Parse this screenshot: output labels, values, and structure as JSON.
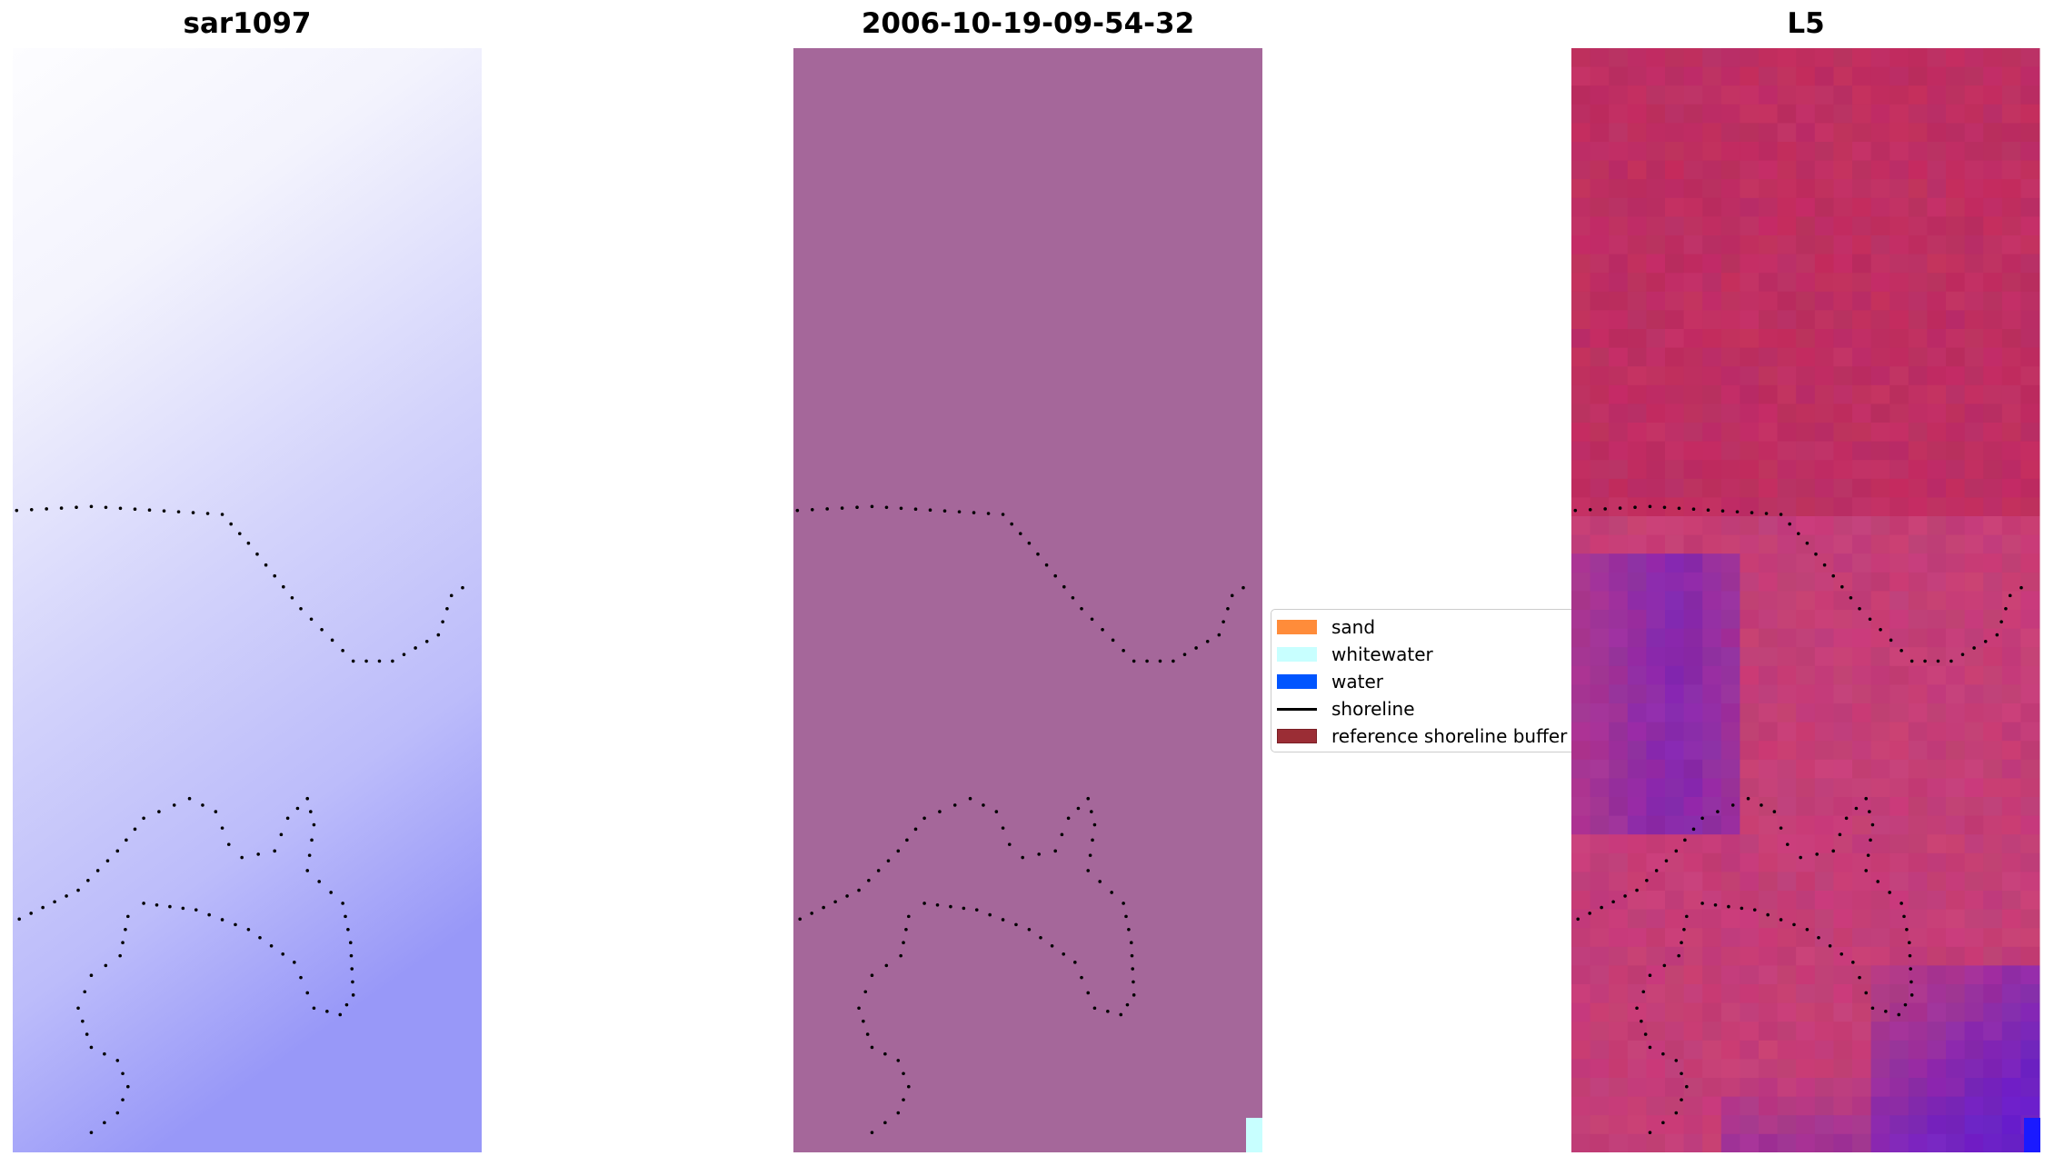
{
  "chart_data": {
    "type": "heatmap",
    "panels": [
      {
        "title": "sar1097",
        "description_colormap": "white-to-blue"
      },
      {
        "title": "2006-10-19-09-54-32",
        "fill_color": "#a5679a"
      },
      {
        "title": "L5",
        "description_colormap": "crimson-to-purple"
      }
    ],
    "legend": {
      "placement": "center",
      "entries": [
        {
          "label": "sand",
          "color": "#ff8c3a",
          "kind": "patch"
        },
        {
          "label": "whitewater",
          "color": "#c8ffff",
          "kind": "patch"
        },
        {
          "label": "water",
          "color": "#0055ff",
          "kind": "patch"
        },
        {
          "label": "shoreline",
          "color": "#000000",
          "kind": "line"
        },
        {
          "label": "reference shoreline buffer",
          "color": "#9b2d35",
          "kind": "patch"
        }
      ]
    }
  }
}
